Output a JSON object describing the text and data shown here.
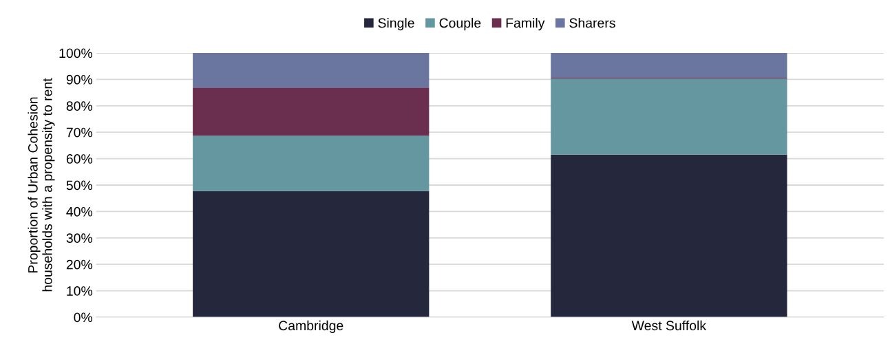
{
  "chart_data": {
    "type": "bar",
    "stacked": true,
    "ylabel": "Proportion of Urban Cohesion\nhouseholds with a propensity to rent",
    "categories": [
      "Cambridge",
      "West Suffolk"
    ],
    "series": [
      {
        "name": "Single",
        "color": "#25283d",
        "values": [
          47.7,
          61.5
        ]
      },
      {
        "name": "Couple",
        "color": "#6497a0",
        "values": [
          21.0,
          28.8
        ]
      },
      {
        "name": "Family",
        "color": "#6a2e4f",
        "values": [
          18.2,
          0.3
        ]
      },
      {
        "name": "Sharers",
        "color": "#6a769f",
        "values": [
          13.1,
          9.4
        ]
      }
    ],
    "ylim": [
      0,
      100
    ],
    "yticks": [
      {
        "value": 0,
        "label": "0%"
      },
      {
        "value": 10,
        "label": "10%"
      },
      {
        "value": 20,
        "label": "20%"
      },
      {
        "value": 30,
        "label": "30%"
      },
      {
        "value": 40,
        "label": "40%"
      },
      {
        "value": 50,
        "label": "50%"
      },
      {
        "value": 60,
        "label": "60%"
      },
      {
        "value": 70,
        "label": "70%"
      },
      {
        "value": 80,
        "label": "80%"
      },
      {
        "value": 90,
        "label": "90%"
      },
      {
        "value": 100,
        "label": "100%"
      }
    ],
    "grid": "y",
    "legend": "top"
  }
}
